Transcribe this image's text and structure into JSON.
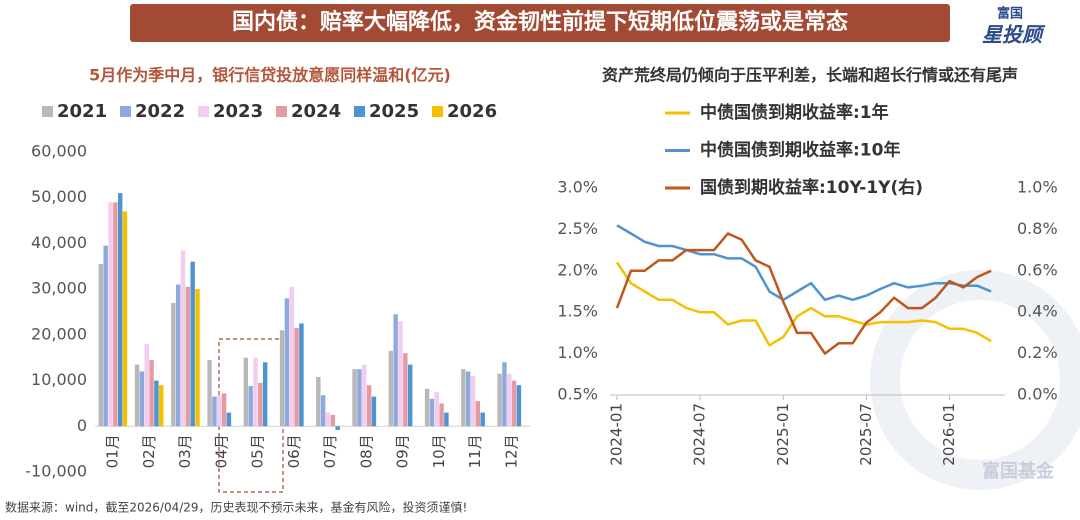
{
  "header": {
    "title": "国内债：赔率大幅降低，资金韧性前提下短期低位震荡或是常态",
    "logo_top": "富国",
    "logo_bottom": "星投顾"
  },
  "chart_data": [
    {
      "type": "bar",
      "title": "5月作为季中月，银行信贷投放意愿同样温和(亿元)",
      "categories": [
        "01月",
        "02月",
        "03月",
        "04月",
        "05月",
        "06月",
        "07月",
        "08月",
        "09月",
        "10月",
        "11月",
        "12月"
      ],
      "series": [
        {
          "name": "2021",
          "color": "#b8b8b8",
          "values": [
            35500,
            13500,
            27000,
            14500,
            15000,
            21000,
            10800,
            12500,
            16500,
            8200,
            12500,
            11500
          ]
        },
        {
          "name": "2022",
          "color": "#8eaadc",
          "values": [
            39500,
            12000,
            31000,
            6500,
            8800,
            28000,
            6800,
            12500,
            24500,
            6000,
            12000,
            14000
          ]
        },
        {
          "name": "2023",
          "color": "#f2cdf0",
          "values": [
            49000,
            18000,
            38500,
            6800,
            15000,
            30500,
            3000,
            13500,
            23000,
            7500,
            11000,
            11500
          ]
        },
        {
          "name": "2024",
          "color": "#e39ba2",
          "values": [
            49000,
            14500,
            30500,
            7200,
            9500,
            21500,
            2500,
            9000,
            16000,
            5000,
            5500,
            10000
          ]
        },
        {
          "name": "2025",
          "color": "#4f93d0",
          "values": [
            51000,
            10000,
            36000,
            3000,
            14000,
            22500,
            -800,
            6500,
            13500,
            3000,
            3000,
            9000
          ]
        },
        {
          "name": "2026",
          "color": "#f5c000",
          "values": [
            47000,
            9000,
            30000,
            null,
            null,
            null,
            null,
            null,
            null,
            null,
            null,
            null
          ]
        }
      ],
      "ylim": [
        -10000,
        60000
      ],
      "yticks": [
        {
          "value": -10000,
          "label": "-10,000"
        },
        0,
        {
          "value": 10000,
          "label": "10,000"
        },
        {
          "value": 20000,
          "label": "20,000"
        },
        {
          "value": 30000,
          "label": "30,000"
        },
        {
          "value": 40000,
          "label": "40,000"
        },
        {
          "value": 50000,
          "label": "50,000"
        },
        {
          "value": 60000,
          "label": "60,000"
        }
      ],
      "grid": false
    },
    {
      "type": "line",
      "title": "资产荒终局仍倾向于压平利差，长端和超长行情或还有尾声",
      "x": [
        "2024-01",
        "2024-02",
        "2024-03",
        "2024-04",
        "2024-05",
        "2024-06",
        "2024-07",
        "2024-08",
        "2024-09",
        "2024-10",
        "2024-11",
        "2024-12",
        "2025-01",
        "2025-02",
        "2025-03",
        "2025-04",
        "2025-05",
        "2025-06",
        "2025-07",
        "2025-08",
        "2025-09",
        "2025-10",
        "2025-11",
        "2025-12",
        "2026-01",
        "2026-02",
        "2026-03",
        "2026-04"
      ],
      "xlim": [
        "2024-01",
        "2026-05"
      ],
      "xticks": [
        "2024-01",
        "2024-07",
        "2025-01",
        "2025-07",
        "2026-01"
      ],
      "series": [
        {
          "name": "中债国债到期收益率:1年",
          "color": "#f5c000",
          "values": [
            2.1,
            1.85,
            1.75,
            1.65,
            1.65,
            1.55,
            1.5,
            1.5,
            1.35,
            1.4,
            1.4,
            1.1,
            1.2,
            1.45,
            1.55,
            1.45,
            1.45,
            1.4,
            1.35,
            1.38,
            1.38,
            1.38,
            1.4,
            1.38,
            1.3,
            1.3,
            1.25,
            1.15
          ]
        },
        {
          "name": "中债国债到期收益率:10年",
          "color": "#4f93d0",
          "values": [
            2.55,
            2.45,
            2.35,
            2.3,
            2.3,
            2.25,
            2.2,
            2.2,
            2.15,
            2.15,
            2.05,
            1.75,
            1.65,
            1.75,
            1.85,
            1.65,
            1.7,
            1.65,
            1.7,
            1.78,
            1.85,
            1.8,
            1.82,
            1.85,
            1.85,
            1.82,
            1.82,
            1.75
          ]
        },
        {
          "name": "国债到期收益率:10Y-1Y(右)",
          "color": "#c0561a",
          "axis": "y2",
          "values": [
            0.42,
            0.6,
            0.6,
            0.65,
            0.65,
            0.7,
            0.7,
            0.7,
            0.78,
            0.75,
            0.65,
            0.62,
            0.45,
            0.3,
            0.3,
            0.2,
            0.25,
            0.25,
            0.35,
            0.4,
            0.47,
            0.42,
            0.42,
            0.47,
            0.55,
            0.52,
            0.57,
            0.6
          ]
        }
      ],
      "ylim": [
        0.5,
        3.0
      ],
      "yticks": [
        {
          "value": 0.5,
          "label": "0.5%"
        },
        {
          "value": 1.0,
          "label": "1.0%"
        },
        {
          "value": 1.5,
          "label": "1.5%"
        },
        {
          "value": 2.0,
          "label": "2.0%"
        },
        {
          "value": 2.5,
          "label": "2.5%"
        },
        {
          "value": 3.0,
          "label": "3.0%"
        }
      ],
      "y2lim": [
        0.0,
        1.0
      ],
      "y2ticks": [
        {
          "value": 0.0,
          "label": "0.0%"
        },
        {
          "value": 0.2,
          "label": "0.2%"
        },
        {
          "value": 0.4,
          "label": "0.4%"
        },
        {
          "value": 0.6,
          "label": "0.6%"
        },
        {
          "value": 0.8,
          "label": "0.8%"
        },
        {
          "value": 1.0,
          "label": "1.0%"
        }
      ],
      "grid": false
    }
  ],
  "footer": {
    "source": "数据来源：wind，截至2026/04/29，历史表现不预示未来，基金有风险，投资须谨慎!",
    "watermark": "富国基金"
  }
}
